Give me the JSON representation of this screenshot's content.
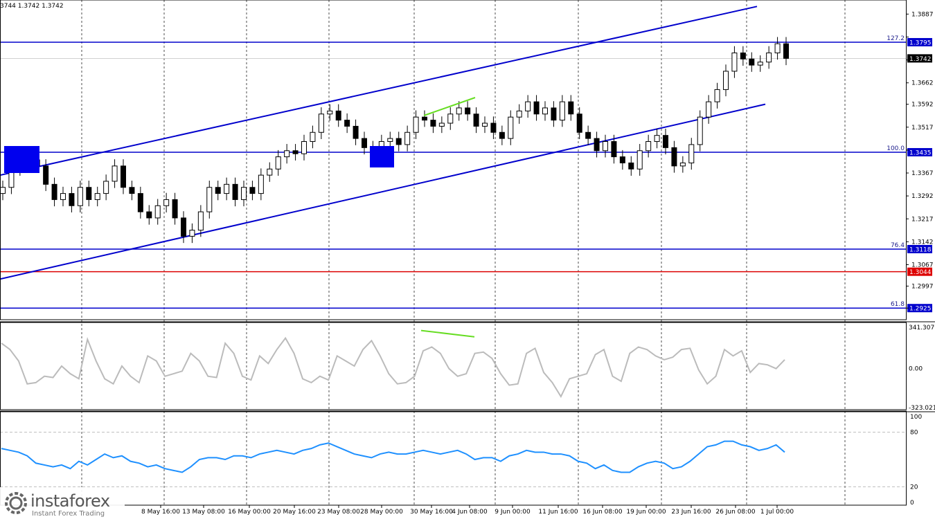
{
  "header": {
    "ohlc_text": "3744 1.3742 1.3742"
  },
  "watermark": {
    "name": "instaforex",
    "tagline": "Instant Forex Trading",
    "logo_icon": "instaforex-gear-icon"
  },
  "chart_data": [
    {
      "type": "candlestick",
      "panel": "price",
      "ylim": [
        1.2887,
        1.3924
      ],
      "y_ticks": [
        "1.3887",
        "1.3812",
        "1.3737",
        "1.3662",
        "1.3592",
        "1.3517",
        "1.3442",
        "1.3367",
        "1.3292",
        "1.3217",
        "1.3142",
        "1.3067",
        "1.2997",
        "1.2925"
      ],
      "current_price": "1.3742",
      "levels": [
        {
          "name": "fib-127.2",
          "fib_label": "127.2",
          "price": 1.3795,
          "label": "1.3795",
          "color": "#0000cc"
        },
        {
          "name": "fib-100.0",
          "fib_label": "100.0",
          "price": 1.3435,
          "label": "1.3435",
          "color": "#0000cc"
        },
        {
          "name": "fib-76.4",
          "fib_label": "76.4",
          "price": 1.3118,
          "label": "1.3118",
          "color": "#0000cc"
        },
        {
          "name": "red-level",
          "fib_label": "",
          "price": 1.3044,
          "label": "1.3044",
          "color": "#dd0000"
        },
        {
          "name": "fib-61.8",
          "fib_label": "61.8",
          "price": 1.2925,
          "label": "1.2925",
          "color": "#0000cc"
        }
      ],
      "x_labels": [
        "8 May 16:00",
        "13 May 08:00",
        "16 May 00:00",
        "20 May 16:00",
        "23 May 08:00",
        "28 May 00:00",
        "30 May 16:00",
        "4 Jun 08:00",
        "9 Jun 00:00",
        "11 Jun 16:00",
        "16 Jun 08:00",
        "19 Jun 00:00",
        "23 Jun 16:00",
        "26 Jun 08:00",
        "1 Jul 00:00"
      ],
      "close_series": [
        1.332,
        1.338,
        1.343,
        1.341,
        1.339,
        1.333,
        1.328,
        1.33,
        1.326,
        1.332,
        1.328,
        1.33,
        1.334,
        1.339,
        1.332,
        1.33,
        1.324,
        1.322,
        1.326,
        1.328,
        1.322,
        1.316,
        1.318,
        1.324,
        1.332,
        1.33,
        1.333,
        1.328,
        1.332,
        1.33,
        1.336,
        1.338,
        1.342,
        1.344,
        1.343,
        1.347,
        1.35,
        1.356,
        1.357,
        1.354,
        1.352,
        1.348,
        1.345,
        1.343,
        1.347,
        1.348,
        1.346,
        1.35,
        1.355,
        1.354,
        1.352,
        1.353,
        1.356,
        1.358,
        1.356,
        1.352,
        1.353,
        1.35,
        1.348,
        1.355,
        1.357,
        1.36,
        1.356,
        1.358,
        1.354,
        1.36,
        1.356,
        1.35,
        1.348,
        1.344,
        1.347,
        1.342,
        1.34,
        1.338,
        1.344,
        1.347,
        1.349,
        1.345,
        1.339,
        1.34,
        1.346,
        1.355,
        1.36,
        1.364,
        1.37,
        1.376,
        1.374,
        1.372,
        1.373,
        1.376,
        1.379,
        1.3742
      ]
    },
    {
      "type": "line",
      "panel": "cci",
      "name": "",
      "ylim": [
        -323.0211,
        341.3079
      ],
      "y_ticks": [
        "341.3079",
        "0.00",
        "-323.0211"
      ],
      "color": "#bbbbbb",
      "values": [
        200,
        150,
        60,
        -120,
        -110,
        -60,
        -70,
        20,
        -40,
        -80,
        230,
        60,
        -80,
        -120,
        20,
        -60,
        -110,
        100,
        60,
        -60,
        -40,
        -20,
        120,
        60,
        -60,
        -70,
        200,
        120,
        -60,
        -90,
        100,
        40,
        150,
        240,
        120,
        -80,
        -110,
        -60,
        -90,
        100,
        60,
        20,
        150,
        220,
        100,
        -40,
        -120,
        -110,
        -60,
        140,
        170,
        120,
        0,
        -60,
        -40,
        120,
        130,
        80,
        -40,
        -130,
        -120,
        120,
        160,
        -30,
        -110,
        -220,
        -80,
        -60,
        -40,
        110,
        150,
        -60,
        -100,
        120,
        170,
        150,
        100,
        70,
        90,
        150,
        160,
        -10,
        -120,
        -60,
        150,
        100,
        140,
        -30,
        40,
        30,
        0,
        70
      ]
    },
    {
      "type": "line",
      "panel": "rsi",
      "name": "",
      "ylim": [
        0,
        100
      ],
      "y_ticks": [
        "100",
        "80",
        "20",
        "0"
      ],
      "levels": [
        80,
        20
      ],
      "color": "#1e90ff",
      "values": [
        62,
        60,
        58,
        54,
        46,
        44,
        42,
        44,
        40,
        48,
        44,
        50,
        56,
        52,
        54,
        48,
        46,
        42,
        44,
        40,
        38,
        36,
        42,
        50,
        52,
        52,
        50,
        54,
        54,
        52,
        56,
        58,
        60,
        58,
        56,
        60,
        62,
        66,
        68,
        64,
        60,
        56,
        54,
        52,
        56,
        58,
        56,
        56,
        58,
        60,
        58,
        56,
        58,
        60,
        56,
        50,
        52,
        52,
        48,
        54,
        56,
        60,
        58,
        58,
        56,
        56,
        54,
        48,
        46,
        40,
        44,
        38,
        36,
        36,
        42,
        46,
        48,
        46,
        40,
        42,
        48,
        56,
        64,
        66,
        70,
        70,
        66,
        64,
        60,
        62,
        66,
        58
      ]
    }
  ]
}
